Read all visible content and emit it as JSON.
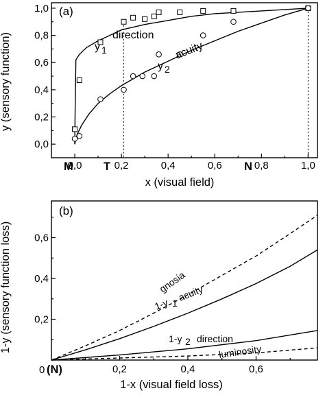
{
  "chart_data": [
    {
      "id": "a",
      "type": "scatter",
      "panel_label": "(a)",
      "xlabel": "x (visual field)",
      "ylabel": "y (sensory function)",
      "xlim": [
        -0.1,
        1.04
      ],
      "ylim": [
        -0.1,
        1.04
      ],
      "x_ticks": [
        0.0,
        0.2,
        0.4,
        0.6,
        0.8,
        1.0
      ],
      "x_tick_labels": [
        "0,0",
        "0,2",
        "0,4",
        "0,6",
        "0,8",
        "1,0"
      ],
      "y_ticks": [
        0.0,
        0.2,
        0.4,
        0.6,
        0.8,
        1.0
      ],
      "y_tick_labels": [
        "0,0",
        "0,2",
        "0,4",
        "0,6",
        "0,8",
        "1,0"
      ],
      "grid": false,
      "series": [
        {
          "key": "direction",
          "marker": "square",
          "points": [
            [
              0.0,
              0.11
            ],
            [
              0.02,
              0.47
            ],
            [
              0.11,
              0.75
            ],
            [
              0.21,
              0.9
            ],
            [
              0.25,
              0.93
            ],
            [
              0.3,
              0.92
            ],
            [
              0.34,
              0.94
            ],
            [
              0.36,
              0.97
            ],
            [
              0.45,
              0.97
            ],
            [
              0.55,
              0.98
            ],
            [
              0.68,
              0.98
            ],
            [
              1.0,
              1.0
            ]
          ],
          "fit": [
            [
              0.0,
              0.0
            ],
            [
              0.002,
              0.3
            ],
            [
              0.005,
              0.62
            ],
            [
              0.02,
              0.66
            ],
            [
              0.05,
              0.71
            ],
            [
              0.1,
              0.76
            ],
            [
              0.15,
              0.8
            ],
            [
              0.2,
              0.84
            ],
            [
              0.3,
              0.88
            ],
            [
              0.4,
              0.91
            ],
            [
              0.5,
              0.94
            ],
            [
              0.6,
              0.96
            ],
            [
              0.7,
              0.97
            ],
            [
              0.8,
              0.98
            ],
            [
              0.9,
              0.99
            ],
            [
              1.0,
              1.0
            ]
          ]
        },
        {
          "key": "acuity",
          "marker": "circle",
          "points": [
            [
              0.0,
              0.04
            ],
            [
              0.02,
              0.06
            ],
            [
              0.11,
              0.33
            ],
            [
              0.21,
              0.4
            ],
            [
              0.25,
              0.5
            ],
            [
              0.29,
              0.5
            ],
            [
              0.34,
              0.5
            ],
            [
              0.36,
              0.66
            ],
            [
              0.45,
              0.66
            ],
            [
              0.55,
              0.8
            ],
            [
              0.68,
              0.9
            ],
            [
              1.0,
              1.0
            ]
          ],
          "fit": [
            [
              0.0,
              0.0
            ],
            [
              0.01,
              0.07
            ],
            [
              0.03,
              0.14
            ],
            [
              0.06,
              0.22
            ],
            [
              0.1,
              0.3
            ],
            [
              0.15,
              0.37
            ],
            [
              0.2,
              0.43
            ],
            [
              0.25,
              0.48
            ],
            [
              0.3,
              0.53
            ],
            [
              0.4,
              0.61
            ],
            [
              0.5,
              0.69
            ],
            [
              0.6,
              0.76
            ],
            [
              0.7,
              0.83
            ],
            [
              0.8,
              0.89
            ],
            [
              0.9,
              0.95
            ],
            [
              1.0,
              1.0
            ]
          ]
        }
      ],
      "reference_lines": [
        {
          "x": 0.21,
          "label": "T",
          "top": 0.9
        },
        {
          "x": 1.0,
          "label": "N",
          "top": 1.0
        }
      ],
      "point_labels": [
        {
          "x": 0.0,
          "label": "M"
        }
      ],
      "annotations": [
        {
          "key": "y1",
          "sym": "y",
          "sub": "1",
          "text": "direction"
        },
        {
          "key": "y2",
          "sym": "y",
          "sub": "2",
          "text": "acuity"
        }
      ]
    },
    {
      "id": "b",
      "type": "line",
      "panel_label": "(b)",
      "xlabel": "1-x (visual field loss)",
      "ylabel": "1-y (sensory function loss)",
      "xlim": [
        0.0,
        0.78
      ],
      "ylim": [
        0.0,
        0.78
      ],
      "x_ticks": [
        0.2,
        0.4,
        0.6
      ],
      "x_tick_labels": [
        "0,2",
        "0,4",
        "0,6"
      ],
      "y_ticks": [
        0.2,
        0.4,
        0.6
      ],
      "y_tick_labels": [
        "0,2",
        "0,4",
        "0,6"
      ],
      "origin_labels": {
        "zero": "0",
        "n": "(N)"
      },
      "grid": false,
      "series": [
        {
          "key": "gnosia",
          "label": "gnosia",
          "style": "dashed",
          "points": [
            [
              0.0,
              0.0
            ],
            [
              0.1,
              0.07
            ],
            [
              0.2,
              0.145
            ],
            [
              0.3,
              0.23
            ],
            [
              0.4,
              0.32
            ],
            [
              0.5,
              0.415
            ],
            [
              0.6,
              0.51
            ],
            [
              0.7,
              0.62
            ],
            [
              0.78,
              0.71
            ]
          ]
        },
        {
          "key": "acuity",
          "sym": "1-y",
          "sub": "1",
          "label": "acuity",
          "style": "solid",
          "points": [
            [
              0.0,
              0.0
            ],
            [
              0.1,
              0.05
            ],
            [
              0.2,
              0.105
            ],
            [
              0.3,
              0.165
            ],
            [
              0.4,
              0.23
            ],
            [
              0.5,
              0.3
            ],
            [
              0.6,
              0.375
            ],
            [
              0.7,
              0.46
            ],
            [
              0.78,
              0.54
            ]
          ]
        },
        {
          "key": "direction",
          "sym": "1-y",
          "sub": "2",
          "label": "direction",
          "style": "solid",
          "points": [
            [
              0.0,
              0.0
            ],
            [
              0.2,
              0.025
            ],
            [
              0.4,
              0.055
            ],
            [
              0.6,
              0.095
            ],
            [
              0.78,
              0.145
            ]
          ]
        },
        {
          "key": "luminosity",
          "label": "luminosity",
          "style": "dashed",
          "points": [
            [
              0.0,
              0.0
            ],
            [
              0.2,
              0.01
            ],
            [
              0.4,
              0.02
            ],
            [
              0.6,
              0.035
            ],
            [
              0.78,
              0.06
            ]
          ]
        }
      ]
    }
  ]
}
